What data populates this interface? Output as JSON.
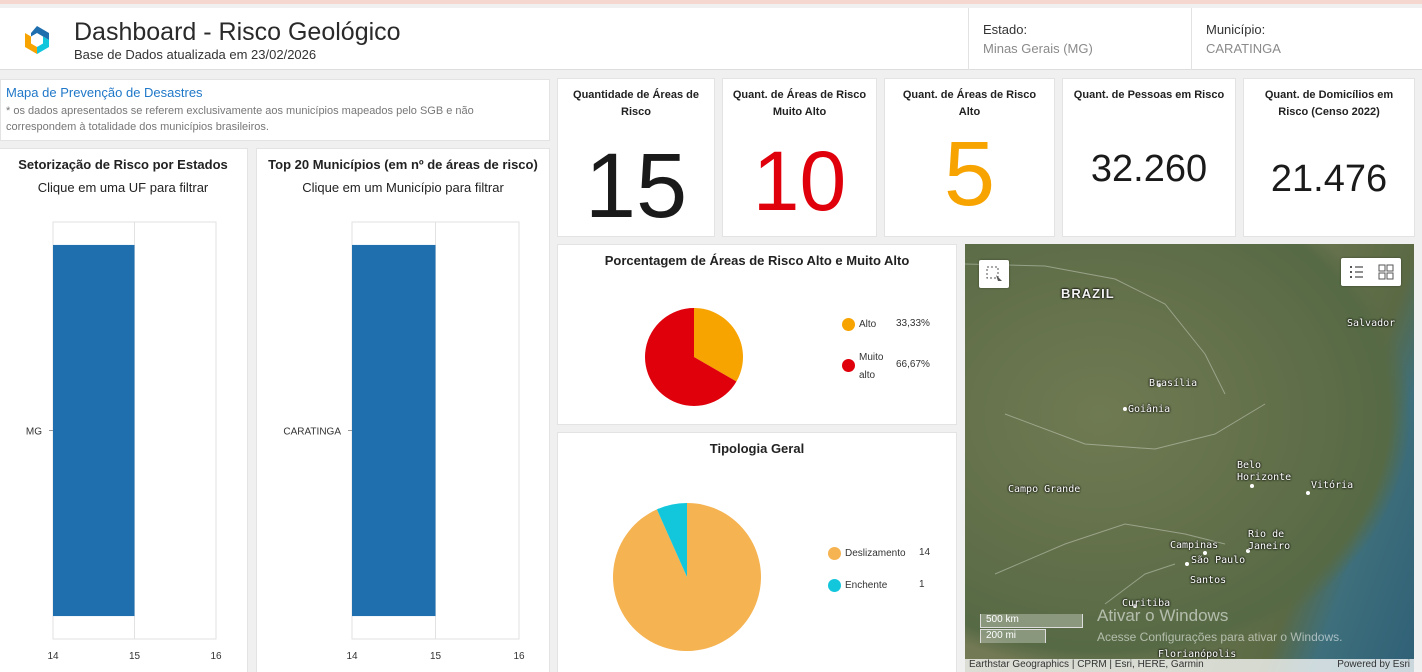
{
  "header": {
    "title": "Dashboard - Risco Geológico",
    "subtitle": "Base de Dados atualizada em 23/02/2026",
    "estado_label": "Estado:",
    "estado_value": "Minas Gerais (MG)",
    "municipio_label": "Município:",
    "municipio_value": "CARATINGA"
  },
  "info": {
    "link": "Mapa de Prevenção de Desastres",
    "note": "* os dados apresentados se referem exclusivamente aos municípios mapeados pelo SGB e não correspondem à totalidade dos municípios brasileiros."
  },
  "kpis": [
    {
      "label": "Quantidade de Áreas de Risco",
      "value": "15",
      "color": "#1a1a1a"
    },
    {
      "label": "Quant. de Áreas de Risco Muito Alto",
      "value": "10",
      "color": "#e0000b"
    },
    {
      "label": "Quant. de Áreas de Risco Alto",
      "value": "5",
      "color": "#f7a300"
    },
    {
      "label": "Quant. de Pessoas em Risco",
      "value": "32.260",
      "color": "#1a1a1a"
    },
    {
      "label": "Quant. de Domicílios em Risco (Censo 2022)",
      "value": "21.476",
      "color": "#1a1a1a"
    }
  ],
  "chart_data": [
    {
      "type": "bar",
      "orientation": "horizontal",
      "title": "Setorização de Risco por Estados",
      "subtitle": "Clique em uma UF para filtrar",
      "categories": [
        "MG"
      ],
      "values": [
        15
      ],
      "xlim": [
        14,
        16
      ],
      "xticks": [
        "14",
        "15",
        "16"
      ],
      "color": "#1f6fae"
    },
    {
      "type": "bar",
      "orientation": "horizontal",
      "title": "Top 20 Municípios (em nº de áreas de risco)",
      "subtitle": "Clique em um Município para filtrar",
      "categories": [
        "CARATINGA"
      ],
      "values": [
        15
      ],
      "xlim": [
        14,
        16
      ],
      "xticks": [
        "14",
        "15",
        "16"
      ],
      "color": "#1f6fae"
    },
    {
      "type": "pie",
      "title": "Porcentagem de Áreas de Risco Alto e Muito Alto",
      "labels": [
        "Alto",
        "Muito alto"
      ],
      "label_lines": [
        [
          "Alto"
        ],
        [
          "Muito",
          "alto"
        ]
      ],
      "values": [
        33.33,
        66.67
      ],
      "value_labels": [
        "33,33%",
        "66,67%"
      ],
      "colors": [
        "#f7a300",
        "#e0000b"
      ]
    },
    {
      "type": "pie",
      "title": "Tipologia Geral",
      "labels": [
        "Deslizamento",
        "Enchente"
      ],
      "values": [
        14,
        1
      ],
      "value_labels": [
        "14",
        "1"
      ],
      "colors": [
        "#f5b352",
        "#12c6dc"
      ]
    }
  ],
  "map": {
    "country": "BRAZIL",
    "cities": [
      "Salvador",
      "Brasília",
      "Goiânia",
      "Belo Horizonte",
      "Vitória",
      "Campo Grande",
      "Campinas",
      "Rio de Janeiro",
      "São Paulo",
      "Santos",
      "Curitiba",
      "Florianópolis"
    ],
    "scale_km": "500 km",
    "scale_mi": "200 mi",
    "attribution": "Earthstar Geographics | CPRM | Esri, HERE, Garmin",
    "powered": "Powered by Esri",
    "select_icon": "rectangle-select-icon",
    "list_icon": "legend-list-icon",
    "basemap_icon": "basemap-gallery-icon"
  },
  "watermark": {
    "title": "Ativar o Windows",
    "text": "Acesse Configurações para ativar o Windows."
  }
}
